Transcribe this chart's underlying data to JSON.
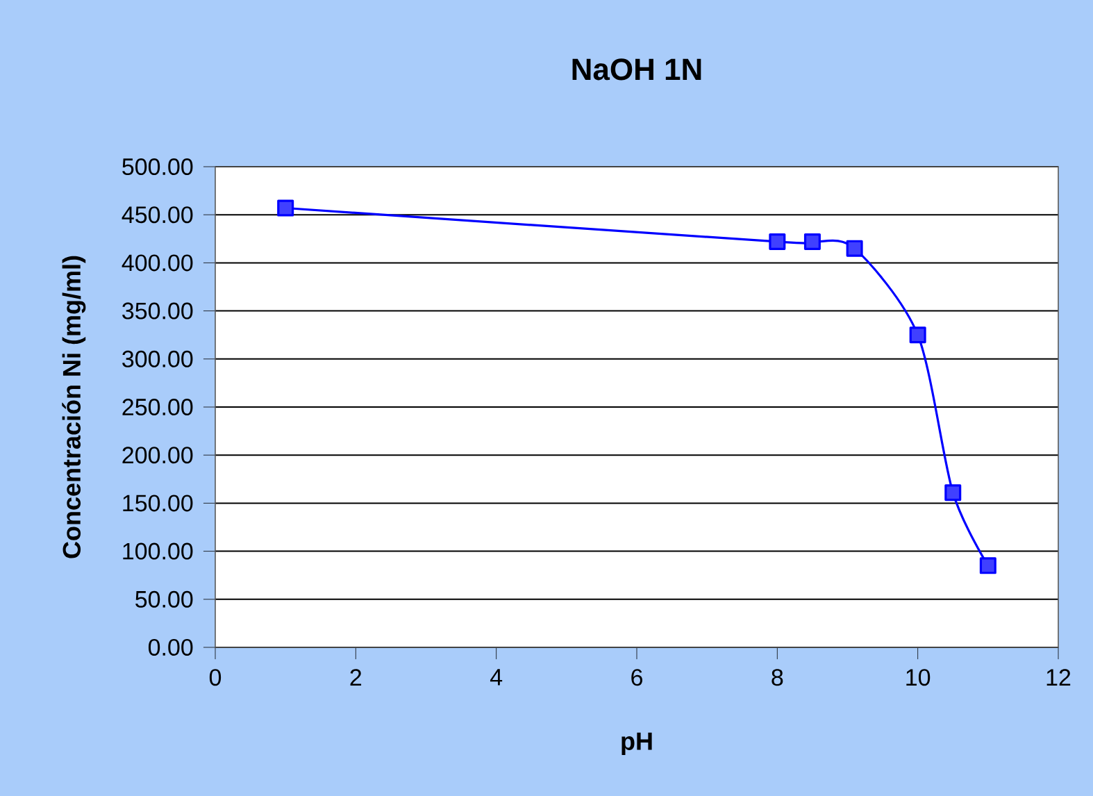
{
  "chart_data": {
    "type": "line",
    "title": "NaOH 1N",
    "xlabel": "pH",
    "ylabel": "Concentración Ni (mg/ml)",
    "x": [
      1,
      8,
      8.5,
      9.1,
      10,
      10.5,
      11
    ],
    "series": [
      {
        "color": "#0000ff",
        "values": [
          457,
          422,
          422,
          415,
          325,
          161,
          85
        ]
      }
    ],
    "xlim": [
      0,
      12
    ],
    "ylim": [
      0,
      500
    ],
    "xticks": [
      0,
      2,
      4,
      6,
      8,
      10,
      12
    ],
    "yticks": [
      {
        "value": 0,
        "label": "0.00"
      },
      {
        "value": 50,
        "label": "50.00"
      },
      {
        "value": 100,
        "label": "100.00"
      },
      {
        "value": 150,
        "label": "150.00"
      },
      {
        "value": 200,
        "label": "200.00"
      },
      {
        "value": 250,
        "label": "250.00"
      },
      {
        "value": 300,
        "label": "300.00"
      },
      {
        "value": 350,
        "label": "350.00"
      },
      {
        "value": 400,
        "label": "400.00"
      },
      {
        "value": 450,
        "label": "450.00"
      },
      {
        "value": 500,
        "label": "500.00"
      }
    ],
    "grid": "y",
    "marker": "square",
    "line_style": "solid"
  }
}
